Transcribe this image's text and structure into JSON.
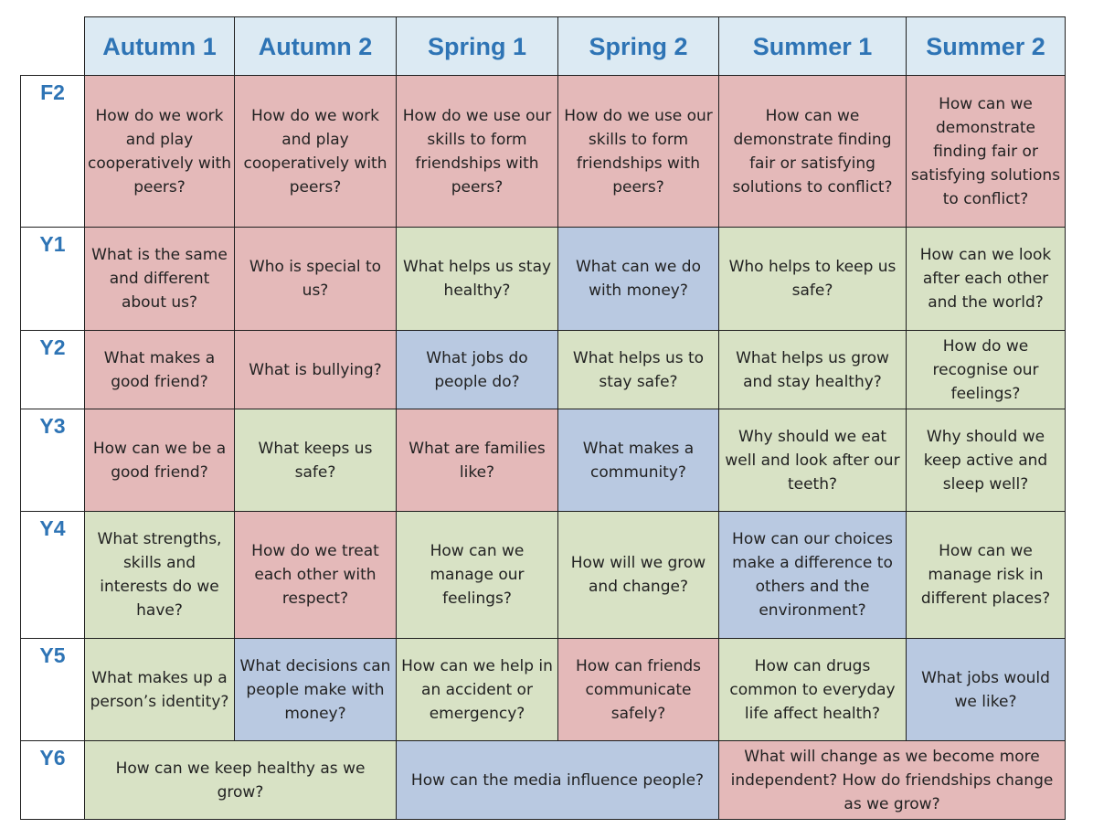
{
  "colors": {
    "header_text": "#2e74b5",
    "header_bg": "#dceaf3",
    "pink": "#e4b9b9",
    "green": "#d8e2c5",
    "blue": "#b9c9e1"
  },
  "headers": [
    "Autumn 1",
    "Autumn 2",
    "Spring 1",
    "Spring 2",
    "Summer 1",
    "Summer 2"
  ],
  "rows": [
    {
      "year": "F2",
      "cells": [
        {
          "text": "How do we work and play cooperatively with peers?",
          "color": "pink"
        },
        {
          "text": "How do we work and play cooperatively with peers?",
          "color": "pink"
        },
        {
          "text": "How do we use our skills to form friendships with peers?",
          "color": "pink"
        },
        {
          "text": "How do we use our skills to form friendships with peers?",
          "color": "pink"
        },
        {
          "text": "How can we demonstrate finding fair or satisfying solutions to conflict?",
          "color": "pink"
        },
        {
          "text": "How can we demonstrate finding fair or satisfying solutions to conflict?",
          "color": "pink"
        }
      ]
    },
    {
      "year": "Y1",
      "cells": [
        {
          "text": "What is the same and different about us?",
          "color": "pink"
        },
        {
          "text": "Who is special to us?",
          "color": "pink"
        },
        {
          "text": "What helps us stay healthy?",
          "color": "green"
        },
        {
          "text": "What can we do with money?",
          "color": "blue"
        },
        {
          "text": "Who helps to keep us safe?",
          "color": "green"
        },
        {
          "text": "How can we look after each other and the world?",
          "color": "green"
        }
      ]
    },
    {
      "year": "Y2",
      "cells": [
        {
          "text": "What makes a good friend?",
          "color": "pink"
        },
        {
          "text": "What is bullying?",
          "color": "pink"
        },
        {
          "text": "What jobs do people do?",
          "color": "blue"
        },
        {
          "text": "What helps us to stay safe?",
          "color": "green"
        },
        {
          "text": "What helps us grow and stay healthy?",
          "color": "green"
        },
        {
          "text": "How do we recognise our feelings?",
          "color": "green"
        }
      ]
    },
    {
      "year": "Y3",
      "cells": [
        {
          "text": "How can we be a good friend?",
          "color": "pink"
        },
        {
          "text": "What keeps us safe?",
          "color": "green"
        },
        {
          "text": "What are families like?",
          "color": "pink"
        },
        {
          "text": "What makes a community?",
          "color": "blue"
        },
        {
          "text": "Why should we eat well and look after our teeth?",
          "color": "green"
        },
        {
          "text": "Why should we keep active and sleep well?",
          "color": "green"
        }
      ]
    },
    {
      "year": "Y4",
      "cells": [
        {
          "text": "What strengths, skills and interests do we have?",
          "color": "green"
        },
        {
          "text": "How do we treat each other with respect?",
          "color": "pink"
        },
        {
          "text": "How can we manage our feelings?",
          "color": "green"
        },
        {
          "text": "How will we grow and change?",
          "color": "green"
        },
        {
          "text": "How can our choices make a difference to others and the environment?",
          "color": "blue"
        },
        {
          "text": "How can we manage risk in different places?",
          "color": "green"
        }
      ]
    },
    {
      "year": "Y5",
      "cells": [
        {
          "text": "What makes up a person’s identity?",
          "color": "green"
        },
        {
          "text": "What decisions can people make with money?",
          "color": "blue"
        },
        {
          "text": "How can we help in an accident or emergency?",
          "color": "green"
        },
        {
          "text": "How can friends communicate safely?",
          "color": "pink"
        },
        {
          "text": "How can drugs common to everyday life affect health?",
          "color": "green"
        },
        {
          "text": "What jobs would we like?",
          "color": "blue"
        }
      ]
    }
  ],
  "last_row": {
    "year": "Y6",
    "cells": [
      {
        "text": "How can we keep healthy as we grow?",
        "color": "green"
      },
      {
        "text": "How can the media influence people?",
        "color": "blue"
      },
      {
        "text": "What will change as we become more independent? How do friendships change as we grow?",
        "color": "pink"
      }
    ]
  }
}
